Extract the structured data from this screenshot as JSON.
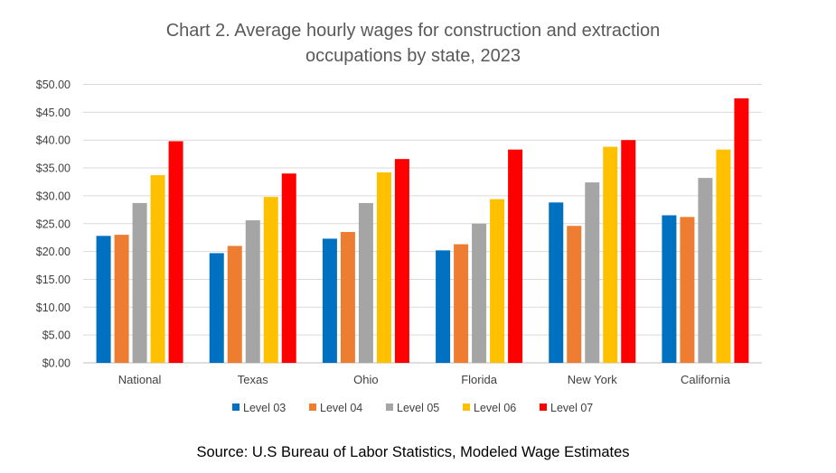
{
  "chart_data": {
    "type": "bar",
    "title_lines": [
      "Chart 2. Average hourly wages for construction and extraction",
      "occupations by state, 2023"
    ],
    "xlabel": "",
    "ylabel": "",
    "categories": [
      "National",
      "Texas",
      "Ohio",
      "Florida",
      "New York",
      "California"
    ],
    "ylim": [
      0,
      50
    ],
    "y_ticks": [
      0,
      5,
      10,
      15,
      20,
      25,
      30,
      35,
      40,
      45,
      50
    ],
    "y_tick_labels": [
      "$0.00",
      "$5.00",
      "$10.00",
      "$15.00",
      "$20.00",
      "$25.00",
      "$30.00",
      "$35.00",
      "$40.00",
      "$45.00",
      "$50.00"
    ],
    "grid": true,
    "legend_position": "bottom",
    "series": [
      {
        "name": "Level 03",
        "color": "#0070C0",
        "values": [
          22.8,
          19.7,
          22.3,
          20.2,
          28.8,
          26.5
        ]
      },
      {
        "name": "Level 04",
        "color": "#ED7D31",
        "values": [
          23.0,
          21.0,
          23.5,
          21.3,
          24.6,
          26.2
        ]
      },
      {
        "name": "Level 05",
        "color": "#A5A5A5",
        "values": [
          28.7,
          25.6,
          28.7,
          25.0,
          32.4,
          33.2
        ]
      },
      {
        "name": "Level 06",
        "color": "#FFC000",
        "values": [
          33.7,
          29.8,
          34.2,
          29.4,
          38.8,
          38.3
        ]
      },
      {
        "name": "Level 07",
        "color": "#FF0000",
        "values": [
          39.8,
          34.0,
          36.6,
          38.3,
          40.0,
          47.5
        ]
      }
    ],
    "source": "Source: U.S Bureau of Labor Statistics, Modeled Wage Estimates"
  }
}
